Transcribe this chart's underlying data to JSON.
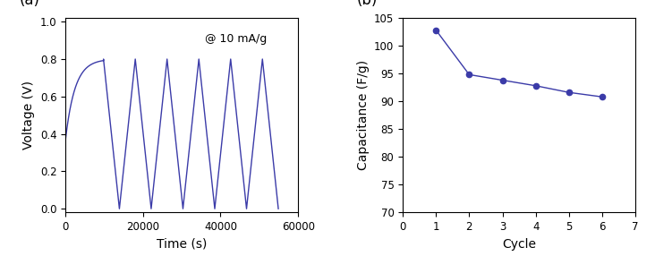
{
  "panel_a": {
    "annotation": "@ 10 mA/g",
    "xlabel": "Time (s)",
    "ylabel": "Voltage (V)",
    "xlim": [
      0,
      60000
    ],
    "ylim": [
      -0.02,
      1.02
    ],
    "xticks": [
      0,
      20000,
      40000,
      60000
    ],
    "yticks": [
      0.0,
      0.2,
      0.4,
      0.6,
      0.8,
      1.0
    ],
    "line_color": "#3B3BA8",
    "start_voltage": 0.37,
    "peak_voltage": 0.8,
    "trough_voltage": 0.0,
    "first_peak_time": 9800,
    "cycle_period": 8200,
    "num_cycles": 5
  },
  "panel_b": {
    "xlabel": "Cycle",
    "ylabel": "Capacitance (F/g)",
    "xlim": [
      0,
      7
    ],
    "ylim": [
      70,
      105
    ],
    "xticks": [
      0,
      1,
      2,
      3,
      4,
      5,
      6,
      7
    ],
    "yticks": [
      70,
      75,
      80,
      85,
      90,
      95,
      100,
      105
    ],
    "cycles": [
      1,
      2,
      3,
      4,
      5,
      6
    ],
    "capacitances": [
      102.8,
      94.8,
      93.8,
      92.8,
      91.6,
      90.8
    ],
    "line_color": "#3B3BA8",
    "marker": "o",
    "marker_size": 4.5
  },
  "label_fontsize": 10,
  "tick_fontsize": 8.5,
  "panel_label_fontsize": 12,
  "background_color": "#ffffff"
}
